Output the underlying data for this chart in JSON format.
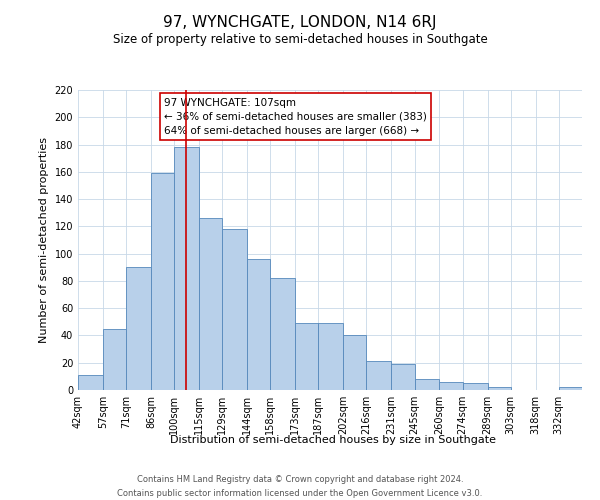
{
  "title": "97, WYNCHGATE, LONDON, N14 6RJ",
  "subtitle": "Size of property relative to semi-detached houses in Southgate",
  "xlabel": "Distribution of semi-detached houses by size in Southgate",
  "ylabel": "Number of semi-detached properties",
  "footer_line1": "Contains HM Land Registry data © Crown copyright and database right 2024.",
  "footer_line2": "Contains public sector information licensed under the Open Government Licence v3.0.",
  "bin_labels": [
    "42sqm",
    "57sqm",
    "71sqm",
    "86sqm",
    "100sqm",
    "115sqm",
    "129sqm",
    "144sqm",
    "158sqm",
    "173sqm",
    "187sqm",
    "202sqm",
    "216sqm",
    "231sqm",
    "245sqm",
    "260sqm",
    "274sqm",
    "289sqm",
    "303sqm",
    "318sqm",
    "332sqm"
  ],
  "bin_edges": [
    42,
    57,
    71,
    86,
    100,
    115,
    129,
    144,
    158,
    173,
    187,
    202,
    216,
    231,
    245,
    260,
    274,
    289,
    303,
    318,
    332,
    346
  ],
  "bar_heights": [
    11,
    45,
    90,
    159,
    178,
    126,
    118,
    96,
    82,
    49,
    49,
    40,
    21,
    19,
    8,
    6,
    5,
    2,
    0,
    0,
    2
  ],
  "bar_color": "#b8d0ea",
  "bar_edgecolor": "#5588bb",
  "property_value": 107,
  "vline_color": "#cc0000",
  "annotation_title": "97 WYNCHGATE: 107sqm",
  "annotation_line1": "← 36% of semi-detached houses are smaller (383)",
  "annotation_line2": "64% of semi-detached houses are larger (668) →",
  "annotation_box_edgecolor": "#cc0000",
  "ylim": [
    0,
    220
  ],
  "yticks": [
    0,
    20,
    40,
    60,
    80,
    100,
    120,
    140,
    160,
    180,
    200,
    220
  ],
  "background_color": "#ffffff",
  "grid_color": "#c8d8e8",
  "title_fontsize": 11,
  "subtitle_fontsize": 8.5,
  "axis_label_fontsize": 8,
  "tick_fontsize": 7,
  "footer_fontsize": 6,
  "annot_fontsize": 7.5
}
